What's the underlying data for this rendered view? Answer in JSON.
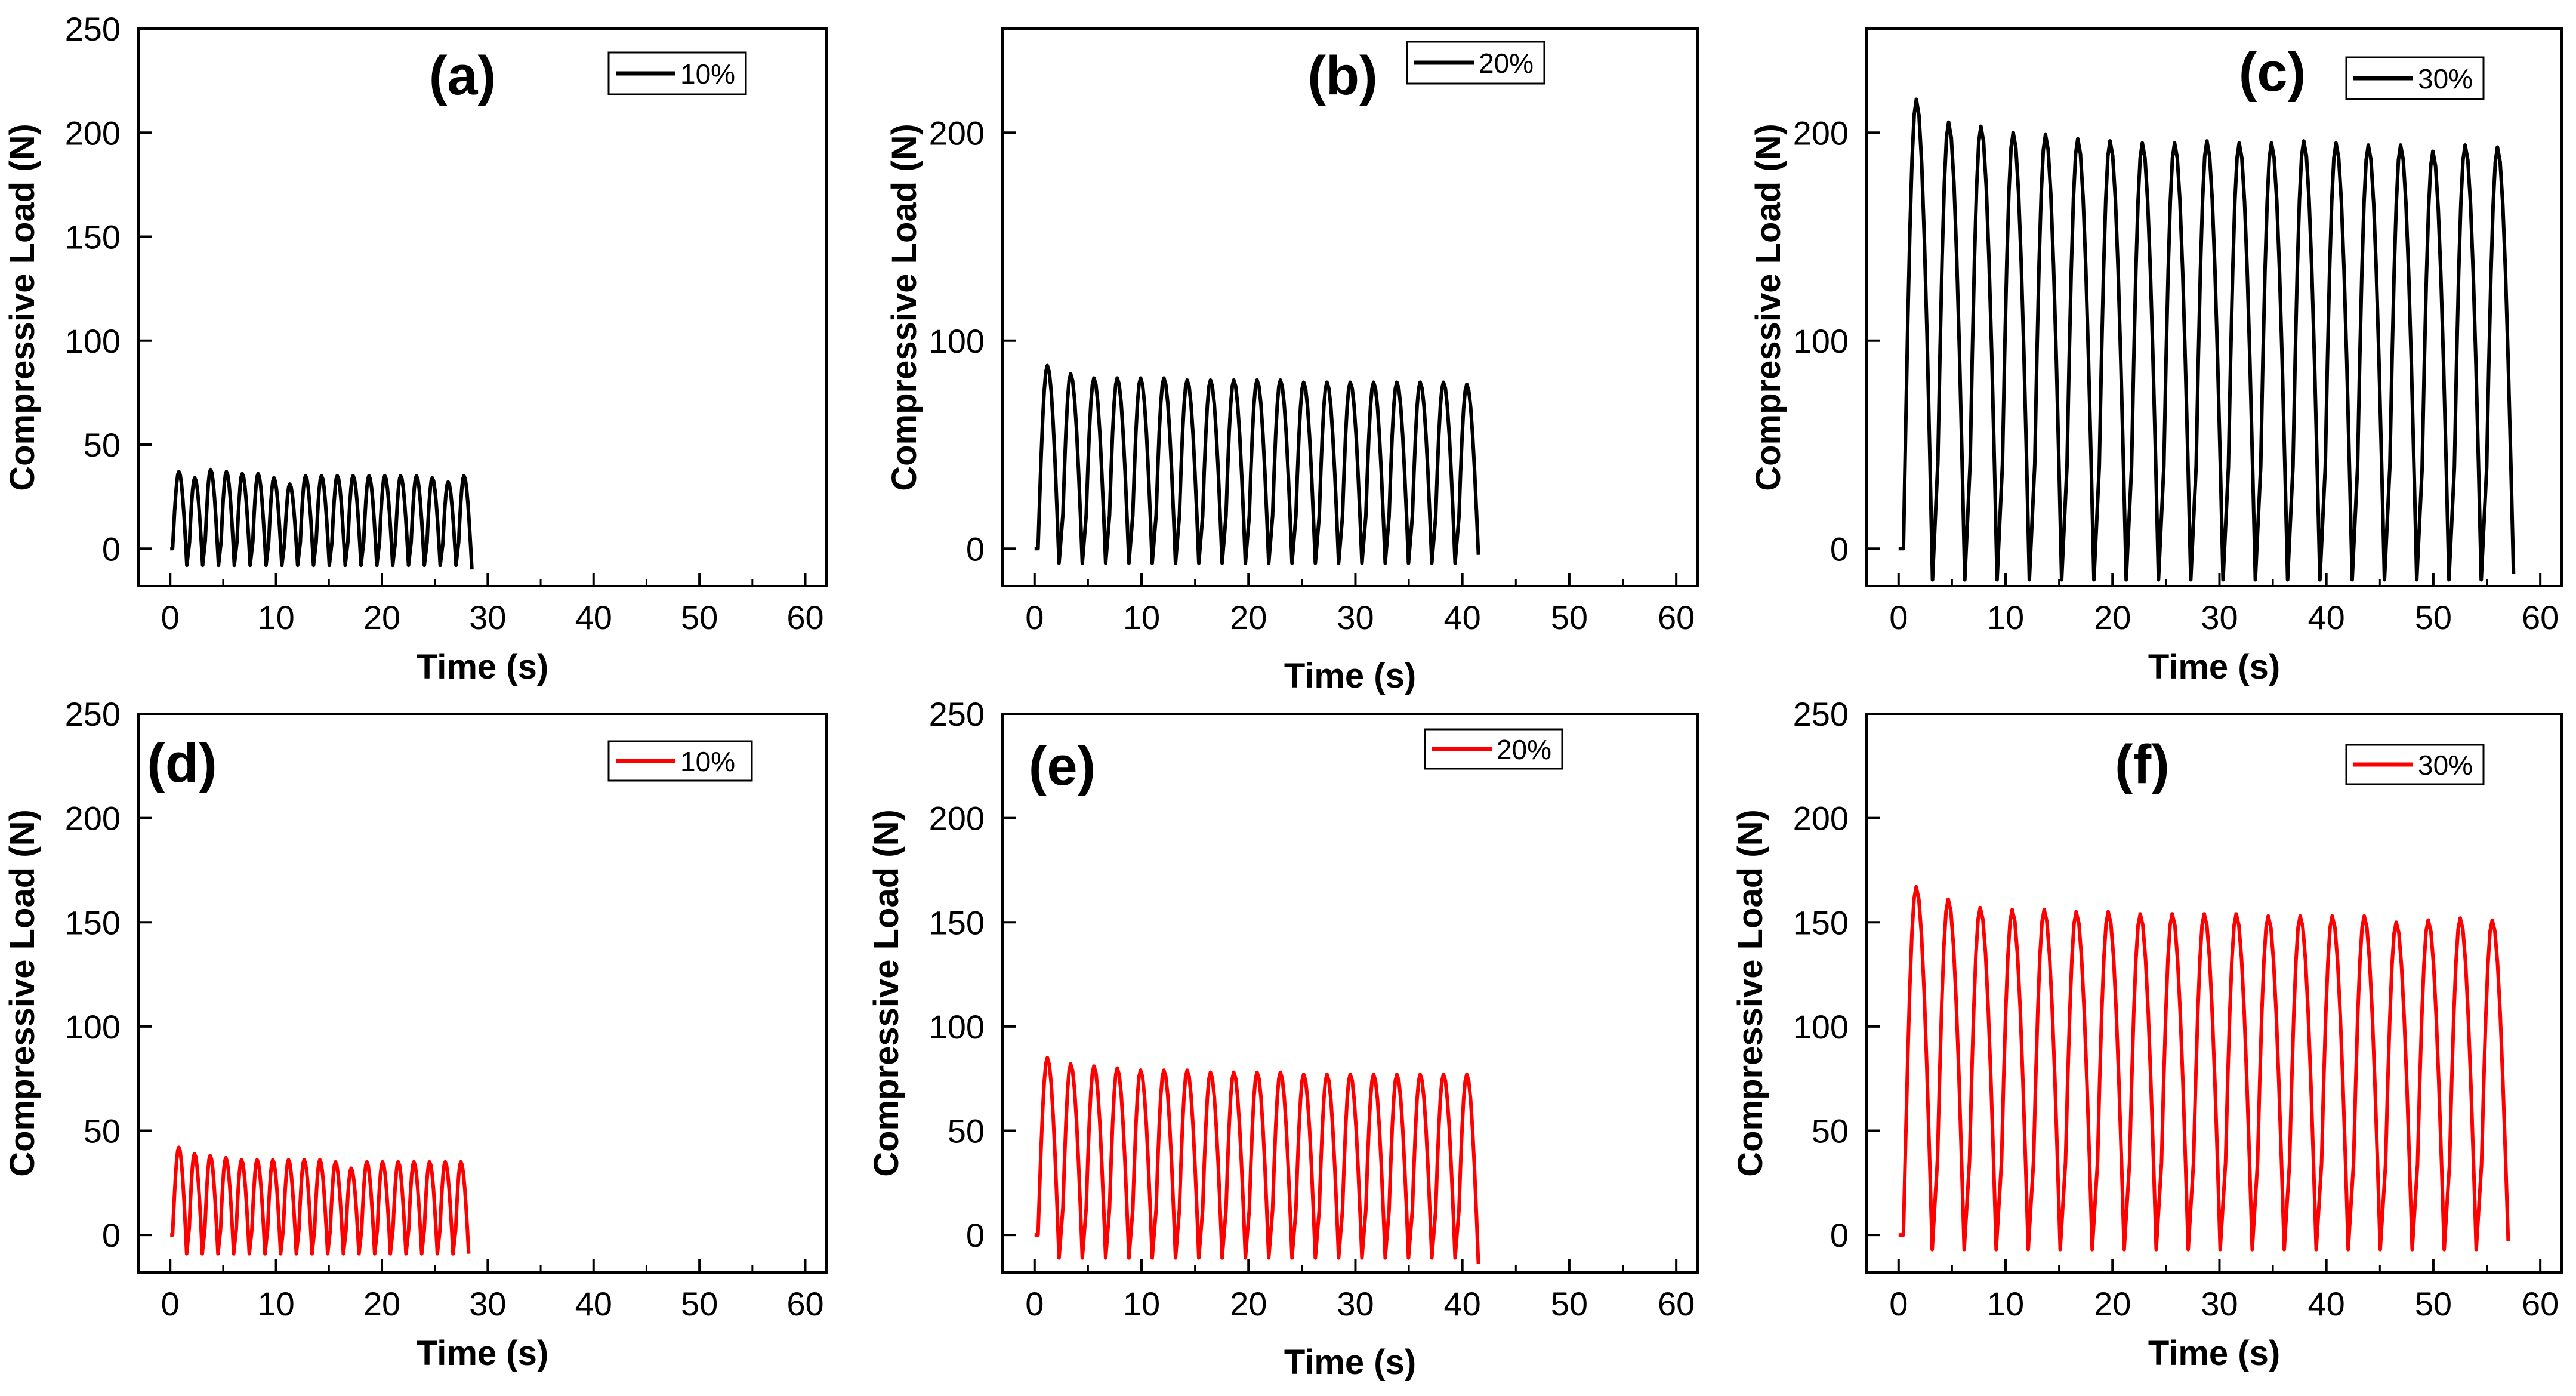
{
  "chart_data": [
    {
      "type": "line",
      "panel_label": "(a)",
      "legend": "10%",
      "color": "#000000",
      "xlabel": "Time (s)",
      "ylabel": "Compressive Load (N)",
      "xlim": [
        -3,
        62
      ],
      "ylim": [
        -18,
        250
      ],
      "xticks": [
        "0",
        "10",
        "20",
        "30",
        "40",
        "50",
        "60"
      ],
      "yticks": [
        "0",
        "50",
        "100",
        "150",
        "200",
        "250"
      ],
      "cycles": 19,
      "t_start": 0,
      "t_end": 28.5,
      "peak_load": [
        37,
        34,
        38,
        37,
        36,
        36,
        34,
        31,
        35,
        35,
        35,
        35,
        35,
        35,
        35,
        35,
        34,
        32,
        35
      ],
      "valley_load": -8,
      "final_load": -10
    },
    {
      "type": "line",
      "panel_label": "(b)",
      "legend": "20%",
      "color": "#000000",
      "xlabel": "Time (s)",
      "ylabel": "Compressive Load (N)",
      "xlim": [
        -3,
        62
      ],
      "ylim": [
        -18,
        250
      ],
      "xticks": [
        "0",
        "10",
        "20",
        "30",
        "40",
        "50",
        "60"
      ],
      "yticks": [
        "0",
        "100",
        "200"
      ],
      "cycles": 19,
      "t_start": 0,
      "t_end": 41.5,
      "peak_load": [
        88,
        84,
        82,
        82,
        82,
        82,
        81,
        81,
        81,
        81,
        81,
        80,
        80,
        80,
        80,
        80,
        80,
        80,
        79
      ],
      "valley_load": -7,
      "final_load": -3
    },
    {
      "type": "line",
      "panel_label": "(c)",
      "legend": "30%",
      "color": "#000000",
      "xlabel": "Time (s)",
      "ylabel": "Compressive Load (N)",
      "xlim": [
        -3,
        62
      ],
      "ylim": [
        -18,
        250
      ],
      "xticks": [
        "0",
        "10",
        "20",
        "30",
        "40",
        "50",
        "60"
      ],
      "yticks": [
        "0",
        "100",
        "200"
      ],
      "cycles": 19,
      "t_start": 0,
      "t_end": 57.5,
      "peak_load": [
        216,
        205,
        203,
        200,
        199,
        197,
        196,
        195,
        195,
        196,
        195,
        195,
        196,
        195,
        194,
        194,
        191,
        194,
        193
      ],
      "valley_load": -15,
      "final_load": -12
    },
    {
      "type": "line",
      "panel_label": "(d)",
      "legend": "10%",
      "color": "#ff0000",
      "xlabel": "Time (s)",
      "ylabel": "Compressive Load (N)",
      "xlim": [
        -3,
        62
      ],
      "ylim": [
        -18,
        250
      ],
      "xticks": [
        "0",
        "10",
        "20",
        "30",
        "40",
        "50",
        "60"
      ],
      "yticks": [
        "0",
        "50",
        "100",
        "150",
        "200",
        "250"
      ],
      "cycles": 19,
      "t_start": 0,
      "t_end": 28.2,
      "peak_load": [
        42,
        39,
        38,
        37,
        36,
        36,
        36,
        36,
        36,
        36,
        35,
        32,
        35,
        35,
        35,
        35,
        35,
        35,
        35
      ],
      "valley_load": -9,
      "final_load": -9
    },
    {
      "type": "line",
      "panel_label": "(e)",
      "legend": "20%",
      "color": "#ff0000",
      "xlabel": "Time (s)",
      "ylabel": "Compressive Load (N)",
      "xlim": [
        -3,
        62
      ],
      "ylim": [
        -18,
        250
      ],
      "xticks": [
        "0",
        "10",
        "20",
        "30",
        "40",
        "50",
        "60"
      ],
      "yticks": [
        "0",
        "50",
        "100",
        "150",
        "200",
        "250"
      ],
      "cycles": 19,
      "t_start": 0,
      "t_end": 41.5,
      "peak_load": [
        85,
        82,
        81,
        80,
        79,
        79,
        79,
        78,
        78,
        78,
        78,
        77,
        77,
        77,
        77,
        77,
        77,
        77,
        77
      ],
      "valley_load": -11,
      "final_load": -14
    },
    {
      "type": "line",
      "panel_label": "(f)",
      "legend": "30%",
      "color": "#ff0000",
      "xlabel": "Time (s)",
      "ylabel": "Compressive Load (N)",
      "xlim": [
        -3,
        62
      ],
      "ylim": [
        -18,
        250
      ],
      "xticks": [
        "0",
        "10",
        "20",
        "30",
        "40",
        "50",
        "60"
      ],
      "yticks": [
        "0",
        "50",
        "100",
        "150",
        "200",
        "250"
      ],
      "cycles": 19,
      "t_start": 0,
      "t_end": 57,
      "peak_load": [
        167,
        161,
        157,
        156,
        156,
        155,
        155,
        154,
        154,
        154,
        154,
        153,
        153,
        153,
        153,
        150,
        151,
        152,
        151
      ],
      "valley_load": -7,
      "final_load": -3
    }
  ]
}
